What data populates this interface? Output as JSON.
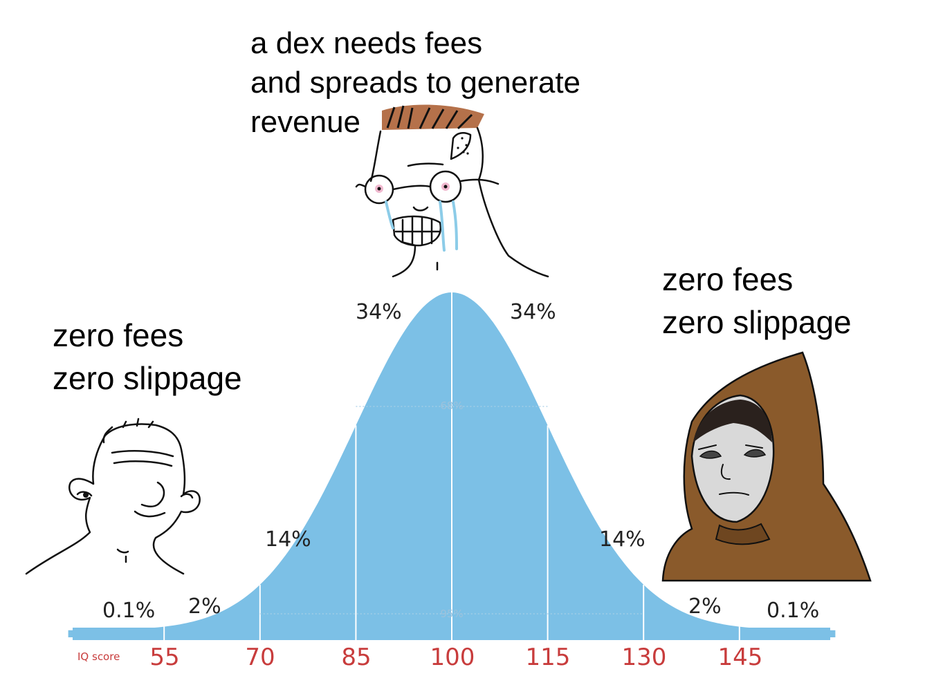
{
  "captions": {
    "top": "a dex needs fees\nand spreads to generate\nrevenue",
    "left": "zero fees\nzero slippage",
    "right": "zero fees\nzero slippage"
  },
  "chart_data": {
    "type": "area",
    "title": "",
    "xlabel": "IQ score",
    "ticks": [
      "55",
      "70",
      "85",
      "100",
      "115",
      "130",
      "145"
    ],
    "segment_labels": {
      "far_left": "0.1%",
      "left_tail": "2%",
      "left_mid": "14%",
      "left_center": "34%",
      "right_center": "34%",
      "right_mid": "14%",
      "right_tail": "2%",
      "far_right": "0.1%"
    },
    "bands": {
      "inner": "68%",
      "outer": "95%"
    },
    "mean": 100,
    "sd": 15,
    "fill_color": "#7cc0e6"
  },
  "characters": {
    "left": "wojak-smiling-icon",
    "top": "wojak-crying-nerd-icon",
    "right": "hooded-monk-icon"
  }
}
